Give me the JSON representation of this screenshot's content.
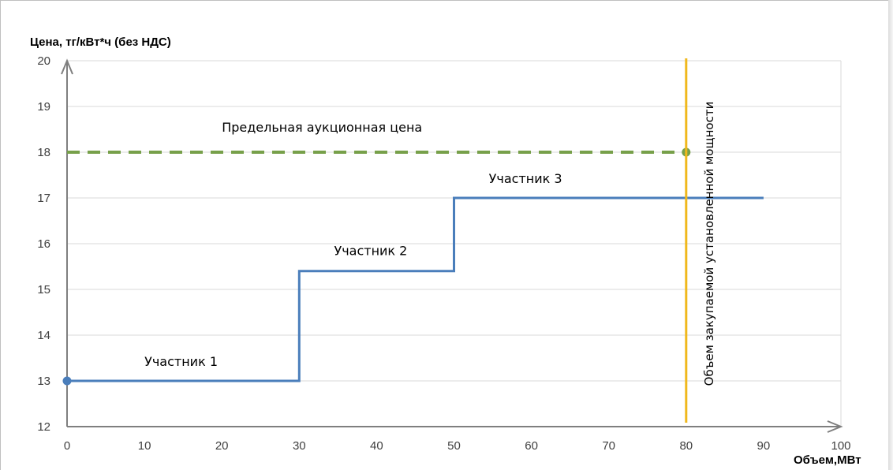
{
  "chart_data": {
    "type": "line",
    "ylabel": "Цена, тг/кВт*ч (без НДС)",
    "xlabel": "Объем,МВт",
    "xlim": [
      0,
      100
    ],
    "ylim": [
      12,
      20
    ],
    "x_ticks": [
      "0",
      "10",
      "20",
      "30",
      "40",
      "50",
      "60",
      "70",
      "80",
      "90",
      "100"
    ],
    "y_ticks": [
      "12",
      "13",
      "14",
      "15",
      "16",
      "17",
      "18",
      "19",
      "20"
    ],
    "grid": "horizontal",
    "series": [
      {
        "type": "step",
        "color": "#4a7ebb",
        "points": [
          [
            0,
            13
          ],
          [
            30,
            13
          ],
          [
            30,
            15.4
          ],
          [
            50,
            15.4
          ],
          [
            50,
            17
          ],
          [
            90,
            17
          ]
        ],
        "start_marker": [
          0,
          13
        ]
      },
      {
        "type": "dashed",
        "color": "#77a04a",
        "points": [
          [
            0,
            18
          ],
          [
            80,
            18
          ]
        ],
        "end_marker": [
          80,
          18
        ]
      }
    ],
    "vertical_line": {
      "x": 80,
      "color": "#f0b81c",
      "label": "Объем закупаемой установленной мощности"
    },
    "annotations": [
      {
        "text": "Предельная аукционная цена",
        "x": 20,
        "y": 18.45
      },
      {
        "text": "Участник 1",
        "x": 10,
        "y": 13.33
      },
      {
        "text": "Участник 2",
        "x": 34.5,
        "y": 15.75
      },
      {
        "text": "Участник 3",
        "x": 54.5,
        "y": 17.33
      }
    ]
  }
}
